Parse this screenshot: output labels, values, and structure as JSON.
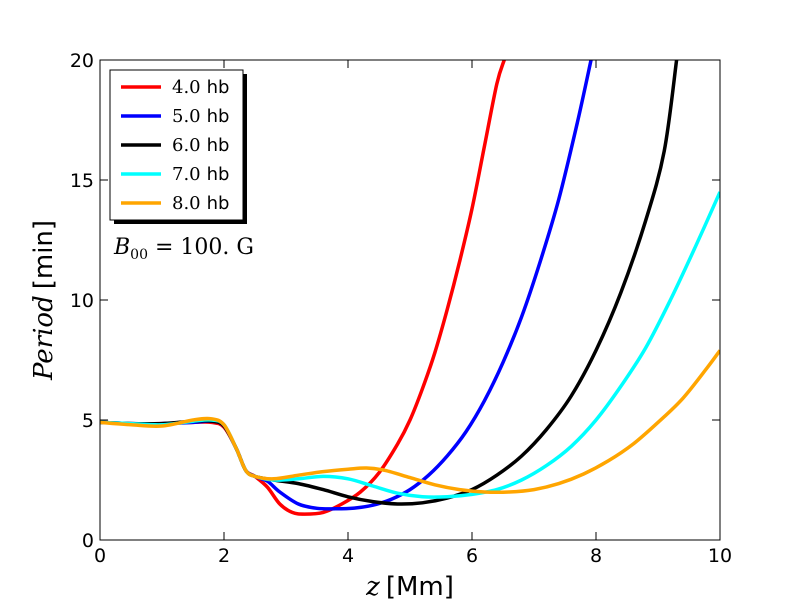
{
  "chart_data": {
    "type": "line",
    "xlabel": {
      "sym": "z",
      "unit": "[Mm]"
    },
    "ylabel": {
      "sym": "Period",
      "unit": "[min]"
    },
    "xlim": [
      0,
      10
    ],
    "ylim": [
      0,
      20
    ],
    "xticks": [
      0,
      2,
      4,
      6,
      8,
      10
    ],
    "yticks": [
      0,
      5,
      10,
      15,
      20
    ],
    "annotation": {
      "sym": "B",
      "sub": "00",
      "value": " = 100. G"
    },
    "legend_position": "upper-left",
    "series": [
      {
        "name": "4.0",
        "unit": "hb",
        "color": "#ff0000",
        "x": [
          0,
          0.5,
          1.0,
          1.5,
          1.8,
          2.0,
          2.2,
          2.35,
          2.5,
          2.7,
          2.9,
          3.1,
          3.3,
          3.6,
          3.9,
          4.2,
          4.5,
          4.8,
          5.0,
          5.2,
          5.4,
          5.6,
          5.8,
          6.0,
          6.2,
          6.4,
          6.52
        ],
        "y": [
          4.9,
          4.85,
          4.85,
          4.9,
          4.9,
          4.7,
          3.8,
          2.9,
          2.65,
          2.2,
          1.5,
          1.15,
          1.08,
          1.15,
          1.5,
          2.0,
          2.8,
          4.0,
          5.0,
          6.3,
          7.8,
          9.6,
          11.6,
          13.8,
          16.4,
          19.0,
          20.0
        ]
      },
      {
        "name": "5.0",
        "unit": "hb",
        "color": "#0000ff",
        "x": [
          0,
          0.5,
          1.0,
          1.5,
          1.8,
          2.0,
          2.2,
          2.35,
          2.5,
          2.7,
          2.9,
          3.2,
          3.5,
          3.8,
          4.1,
          4.4,
          4.7,
          5.0,
          5.3,
          5.6,
          5.9,
          6.2,
          6.5,
          6.8,
          7.1,
          7.4,
          7.7,
          7.92
        ],
        "y": [
          4.9,
          4.85,
          4.85,
          4.9,
          4.95,
          4.75,
          3.8,
          2.9,
          2.65,
          2.45,
          2.0,
          1.5,
          1.32,
          1.3,
          1.33,
          1.45,
          1.7,
          2.1,
          2.7,
          3.5,
          4.5,
          5.8,
          7.4,
          9.3,
          11.6,
          14.2,
          17.4,
          20.0
        ]
      },
      {
        "name": "6.0",
        "unit": "hb",
        "color": "#000000",
        "x": [
          0,
          0.5,
          1.0,
          1.5,
          1.8,
          2.0,
          2.2,
          2.35,
          2.5,
          2.8,
          3.2,
          3.6,
          4.0,
          4.4,
          4.8,
          5.2,
          5.6,
          6.0,
          6.4,
          6.8,
          7.2,
          7.6,
          8.0,
          8.4,
          8.8,
          9.1,
          9.3
        ],
        "y": [
          4.9,
          4.85,
          4.85,
          4.95,
          4.95,
          4.75,
          3.8,
          2.9,
          2.65,
          2.5,
          2.35,
          2.1,
          1.8,
          1.6,
          1.5,
          1.55,
          1.75,
          2.1,
          2.7,
          3.5,
          4.6,
          6.0,
          7.9,
          10.3,
          13.3,
          16.2,
          20.0
        ]
      },
      {
        "name": "7.0",
        "unit": "hb",
        "color": "#00ffff",
        "x": [
          0,
          0.5,
          1.0,
          1.5,
          1.8,
          2.0,
          2.2,
          2.35,
          2.5,
          2.8,
          3.2,
          3.6,
          4.0,
          4.4,
          4.8,
          5.2,
          5.6,
          6.0,
          6.4,
          6.8,
          7.2,
          7.6,
          8.0,
          8.4,
          8.8,
          9.2,
          9.6,
          10.0
        ],
        "y": [
          4.9,
          4.85,
          4.8,
          4.95,
          5.0,
          4.8,
          3.8,
          2.9,
          2.65,
          2.5,
          2.55,
          2.65,
          2.55,
          2.25,
          1.95,
          1.8,
          1.8,
          1.9,
          2.1,
          2.5,
          3.1,
          3.9,
          5.0,
          6.4,
          8.0,
          10.0,
          12.2,
          14.5
        ]
      },
      {
        "name": "8.0",
        "unit": "hb",
        "color": "#ffa500",
        "x": [
          0,
          0.5,
          1.0,
          1.5,
          1.8,
          2.0,
          2.2,
          2.35,
          2.5,
          2.8,
          3.2,
          3.6,
          4.0,
          4.3,
          4.6,
          5.0,
          5.4,
          5.8,
          6.2,
          6.6,
          7.0,
          7.4,
          7.8,
          8.2,
          8.6,
          9.0,
          9.4,
          9.8,
          10.0
        ],
        "y": [
          4.9,
          4.8,
          4.75,
          5.0,
          5.05,
          4.8,
          3.8,
          2.9,
          2.65,
          2.55,
          2.7,
          2.85,
          2.95,
          3.0,
          2.9,
          2.6,
          2.3,
          2.1,
          2.0,
          2.0,
          2.1,
          2.35,
          2.75,
          3.3,
          4.0,
          4.9,
          5.9,
          7.2,
          7.9
        ]
      }
    ]
  }
}
